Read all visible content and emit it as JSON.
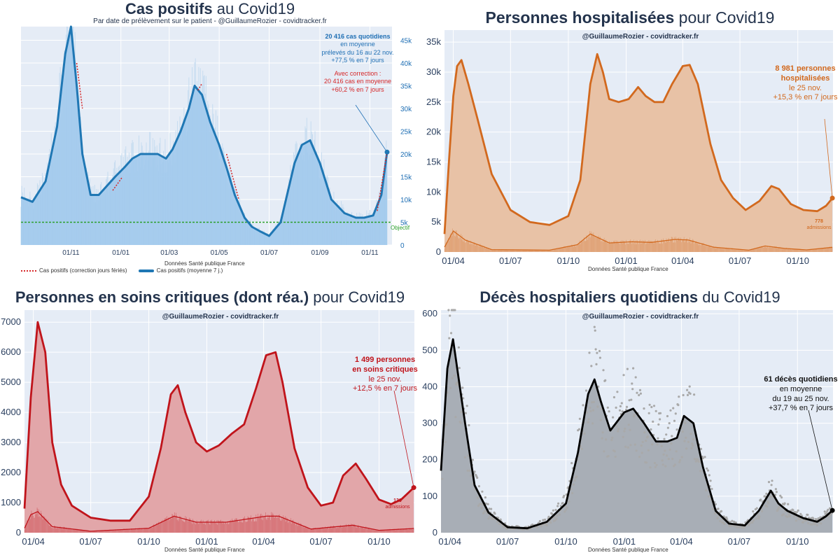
{
  "panels": {
    "cas": {
      "title_bold": "Cas positifs",
      "title_rest": " au Covid19",
      "subtitle": "Par date de prélèvement sur le patient - @GuillaumeRozier - covidtracker.fr",
      "source": "Données Santé publique France",
      "legend_dotted": "Cas positifs (correction jours fériés)",
      "legend_line": "Cas positifs (moyenne 7 j.)",
      "objective_label": "Objectif",
      "anno_main": [
        "20 416 cas quotidiens",
        "en moyenne",
        "prélevés du 16 au 22 nov.",
        "+77,5 % en 7 jours"
      ],
      "anno_corr": [
        "Avec correction :",
        "20 416 cas en moyenne",
        "+60,2 % en 7 jours"
      ],
      "colors": {
        "line": "#1f77b4",
        "fill": "#9fc8ec",
        "correction": "#d62728",
        "objective": "#2ca02c",
        "annotation": "#1f6fb4"
      }
    },
    "hosp": {
      "title_bold": "Personnes hospitalisées",
      "title_rest": " pour Covid19",
      "handle": "@GuillaumeRozier - covidtracker.fr",
      "source": "Données Santé publique France",
      "anno": [
        "8 981 personnes",
        "hospitalisées",
        "le 25 nov.",
        "+15,3 % en 7 jours"
      ],
      "admissions_value": "778",
      "admissions_label": "admissions",
      "colors": {
        "line": "#d2691e",
        "fill": "#e8c2a6",
        "annotation": "#d2691e"
      }
    },
    "rea": {
      "title_bold": "Personnes en soins critiques (dont réa.)",
      "title_rest": " pour Covid19",
      "handle": "@GuillaumeRozier - covidtracker.fr",
      "source": "Données Santé publique France",
      "anno": [
        "1 499 personnes",
        "en soins critiques",
        "le 25 nov.",
        "+12,5 % en 7 jours"
      ],
      "admissions_value": "139",
      "admissions_label": "admissions",
      "colors": {
        "line": "#c0141b",
        "fill": "#e2a6a9",
        "annotation": "#c0141b"
      }
    },
    "deces": {
      "title_bold": "Décès hospitaliers quotidiens",
      "title_rest": " du Covid19",
      "handle": "@GuillaumeRozier - covidtracker.fr",
      "source": "Données Santé publique France",
      "anno": [
        "61 décès quotidiens",
        "en moyenne",
        "du 19 au 25 nov.",
        "+37,7 % en 7 jours"
      ],
      "colors": {
        "line": "#000000",
        "fill": "#a8aeb6",
        "dots": "#a9a9a9",
        "annotation": "#111111"
      }
    }
  },
  "chart_data": [
    {
      "id": "cas",
      "type": "area",
      "x_ticks": [
        "01/11",
        "01/01",
        "01/03",
        "01/05",
        "01/07",
        "01/09",
        "01/11"
      ],
      "y_ticks": [
        "0",
        "5k",
        "10k",
        "15k",
        "20k",
        "25k",
        "30k",
        "35k",
        "40k",
        "45k"
      ],
      "ylim": [
        0,
        48000
      ],
      "objective": 5000,
      "series": [
        {
          "name": "Cas positifs (moyenne 7 j.)",
          "x": [
            "2020-09-01",
            "2020-09-15",
            "2020-10-01",
            "2020-10-15",
            "2020-10-25",
            "2020-11-01",
            "2020-11-08",
            "2020-11-15",
            "2020-11-25",
            "2020-12-05",
            "2020-12-15",
            "2020-12-25",
            "2021-01-05",
            "2021-01-15",
            "2021-01-25",
            "2021-02-05",
            "2021-02-15",
            "2021-02-25",
            "2021-03-05",
            "2021-03-15",
            "2021-03-25",
            "2021-04-01",
            "2021-04-10",
            "2021-04-20",
            "2021-05-01",
            "2021-05-10",
            "2021-05-20",
            "2021-06-01",
            "2021-06-10",
            "2021-06-20",
            "2021-07-01",
            "2021-07-15",
            "2021-08-01",
            "2021-08-10",
            "2021-08-20",
            "2021-09-01",
            "2021-09-15",
            "2021-10-01",
            "2021-10-15",
            "2021-10-25",
            "2021-11-05",
            "2021-11-15",
            "2021-11-22"
          ],
          "values": [
            10500,
            9500,
            14000,
            26000,
            42000,
            48000,
            35000,
            20000,
            11000,
            11000,
            13000,
            15000,
            17000,
            19000,
            20000,
            20000,
            20000,
            19000,
            21000,
            25000,
            30000,
            35000,
            33000,
            27000,
            22000,
            17000,
            11000,
            6000,
            4000,
            3000,
            2000,
            5000,
            18000,
            22000,
            23000,
            18000,
            10000,
            7000,
            6000,
            6000,
            6500,
            11000,
            20416
          ]
        },
        {
          "name": "Cas positifs (correction jours fériés)",
          "x": [
            "2020-11-08",
            "2020-11-15",
            "2020-12-22",
            "2021-01-03",
            "2021-04-05",
            "2021-04-10",
            "2021-05-10",
            "2021-05-25",
            "2021-11-10",
            "2021-11-22"
          ],
          "values": [
            40000,
            30000,
            12000,
            15000,
            34000,
            35500,
            20000,
            10000,
            7500,
            20416
          ]
        }
      ]
    },
    {
      "id": "hosp",
      "type": "area",
      "x_ticks": [
        "01/04",
        "01/07",
        "01/10",
        "01/01",
        "01/04",
        "01/07",
        "01/10"
      ],
      "y_ticks": [
        "0",
        "5k",
        "10k",
        "15k",
        "20k",
        "25k",
        "30k",
        "35k"
      ],
      "ylim": [
        0,
        37000
      ],
      "series": [
        {
          "name": "Personnes hospitalisées",
          "x": [
            "2020-03-18",
            "2020-03-25",
            "2020-04-01",
            "2020-04-07",
            "2020-04-14",
            "2020-04-25",
            "2020-05-10",
            "2020-06-01",
            "2020-07-01",
            "2020-08-01",
            "2020-09-01",
            "2020-10-01",
            "2020-10-20",
            "2020-11-05",
            "2020-11-16",
            "2020-11-25",
            "2020-12-05",
            "2020-12-20",
            "2021-01-05",
            "2021-01-20",
            "2021-02-01",
            "2021-02-15",
            "2021-03-01",
            "2021-03-15",
            "2021-04-01",
            "2021-04-12",
            "2021-04-25",
            "2021-05-15",
            "2021-06-01",
            "2021-06-20",
            "2021-07-10",
            "2021-08-01",
            "2021-08-20",
            "2021-09-01",
            "2021-09-20",
            "2021-10-10",
            "2021-11-01",
            "2021-11-15",
            "2021-11-25"
          ],
          "values": [
            3000,
            15000,
            26000,
            31000,
            32000,
            28000,
            22000,
            13000,
            7000,
            5000,
            4500,
            6000,
            12000,
            28000,
            33000,
            30000,
            25500,
            25000,
            25500,
            27500,
            26000,
            25000,
            25000,
            28000,
            31000,
            31200,
            28000,
            18000,
            12000,
            9000,
            7000,
            8500,
            11000,
            10500,
            8000,
            7000,
            6800,
            7700,
            8981
          ]
        },
        {
          "name": "admissions",
          "x": [
            "2020-03-18",
            "2020-04-01",
            "2020-04-20",
            "2020-06-01",
            "2020-09-01",
            "2020-10-15",
            "2020-11-05",
            "2020-12-05",
            "2021-01-10",
            "2021-02-10",
            "2021-03-20",
            "2021-04-10",
            "2021-05-20",
            "2021-07-15",
            "2021-08-10",
            "2021-09-10",
            "2021-10-15",
            "2021-11-25"
          ],
          "values": [
            800,
            3500,
            2000,
            400,
            300,
            1200,
            3000,
            1500,
            1700,
            1600,
            2100,
            2000,
            800,
            300,
            1000,
            600,
            350,
            778
          ]
        }
      ]
    },
    {
      "id": "rea",
      "type": "area",
      "x_ticks": [
        "01/04",
        "01/07",
        "01/10",
        "01/01",
        "01/04",
        "01/07",
        "01/10"
      ],
      "y_ticks": [
        "0",
        "1000",
        "2000",
        "3000",
        "4000",
        "5000",
        "6000",
        "7000"
      ],
      "ylim": [
        0,
        7400
      ],
      "series": [
        {
          "name": "Personnes en soins critiques",
          "x": [
            "2020-03-18",
            "2020-03-28",
            "2020-04-08",
            "2020-04-20",
            "2020-05-01",
            "2020-05-15",
            "2020-06-01",
            "2020-07-01",
            "2020-08-01",
            "2020-09-01",
            "2020-10-01",
            "2020-10-20",
            "2020-11-05",
            "2020-11-16",
            "2020-11-28",
            "2020-12-15",
            "2021-01-01",
            "2021-01-20",
            "2021-02-10",
            "2021-03-01",
            "2021-03-20",
            "2021-04-05",
            "2021-04-20",
            "2021-05-01",
            "2021-05-20",
            "2021-06-10",
            "2021-07-01",
            "2021-07-20",
            "2021-08-05",
            "2021-08-25",
            "2021-09-10",
            "2021-10-01",
            "2021-10-20",
            "2021-11-05",
            "2021-11-25"
          ],
          "values": [
            800,
            4500,
            7000,
            6000,
            3000,
            1600,
            900,
            500,
            400,
            400,
            1200,
            2800,
            4600,
            4900,
            4000,
            3000,
            2700,
            2900,
            3300,
            3600,
            4800,
            5900,
            6000,
            5000,
            2800,
            1500,
            900,
            1000,
            1900,
            2300,
            1800,
            1100,
            950,
            1100,
            1499
          ]
        },
        {
          "name": "admissions",
          "x": [
            "2020-03-18",
            "2020-03-28",
            "2020-04-08",
            "2020-05-01",
            "2020-07-01",
            "2020-10-01",
            "2020-11-10",
            "2020-12-15",
            "2021-02-01",
            "2021-04-05",
            "2021-04-25",
            "2021-06-15",
            "2021-08-20",
            "2021-10-01",
            "2021-11-25"
          ],
          "values": [
            150,
            600,
            700,
            200,
            50,
            150,
            550,
            350,
            350,
            550,
            550,
            120,
            250,
            80,
            139
          ]
        }
      ]
    },
    {
      "id": "deces",
      "type": "line",
      "x_ticks": [
        "01/04",
        "01/07",
        "01/10",
        "01/01",
        "01/04",
        "01/07",
        "01/10"
      ],
      "y_ticks": [
        "0",
        "100",
        "200",
        "300",
        "400",
        "500",
        "600"
      ],
      "ylim": [
        0,
        610
      ],
      "series": [
        {
          "name": "Décès hospitaliers (moyenne 7 j.)",
          "x": [
            "2020-03-18",
            "2020-03-28",
            "2020-04-06",
            "2020-04-15",
            "2020-04-25",
            "2020-05-10",
            "2020-06-01",
            "2020-07-01",
            "2020-08-01",
            "2020-09-01",
            "2020-10-01",
            "2020-10-20",
            "2020-11-05",
            "2020-11-15",
            "2020-11-25",
            "2020-12-10",
            "2021-01-01",
            "2021-01-15",
            "2021-02-01",
            "2021-02-20",
            "2021-03-10",
            "2021-03-25",
            "2021-04-05",
            "2021-04-20",
            "2021-05-05",
            "2021-05-25",
            "2021-06-15",
            "2021-07-10",
            "2021-08-01",
            "2021-08-20",
            "2021-09-01",
            "2021-09-15",
            "2021-10-10",
            "2021-11-01",
            "2021-11-15",
            "2021-11-25"
          ],
          "values": [
            170,
            450,
            530,
            420,
            300,
            130,
            55,
            15,
            12,
            30,
            80,
            220,
            380,
            420,
            360,
            280,
            330,
            340,
            300,
            250,
            250,
            260,
            320,
            300,
            180,
            60,
            25,
            20,
            60,
            115,
            80,
            60,
            40,
            30,
            45,
            61
          ]
        }
      ]
    }
  ]
}
